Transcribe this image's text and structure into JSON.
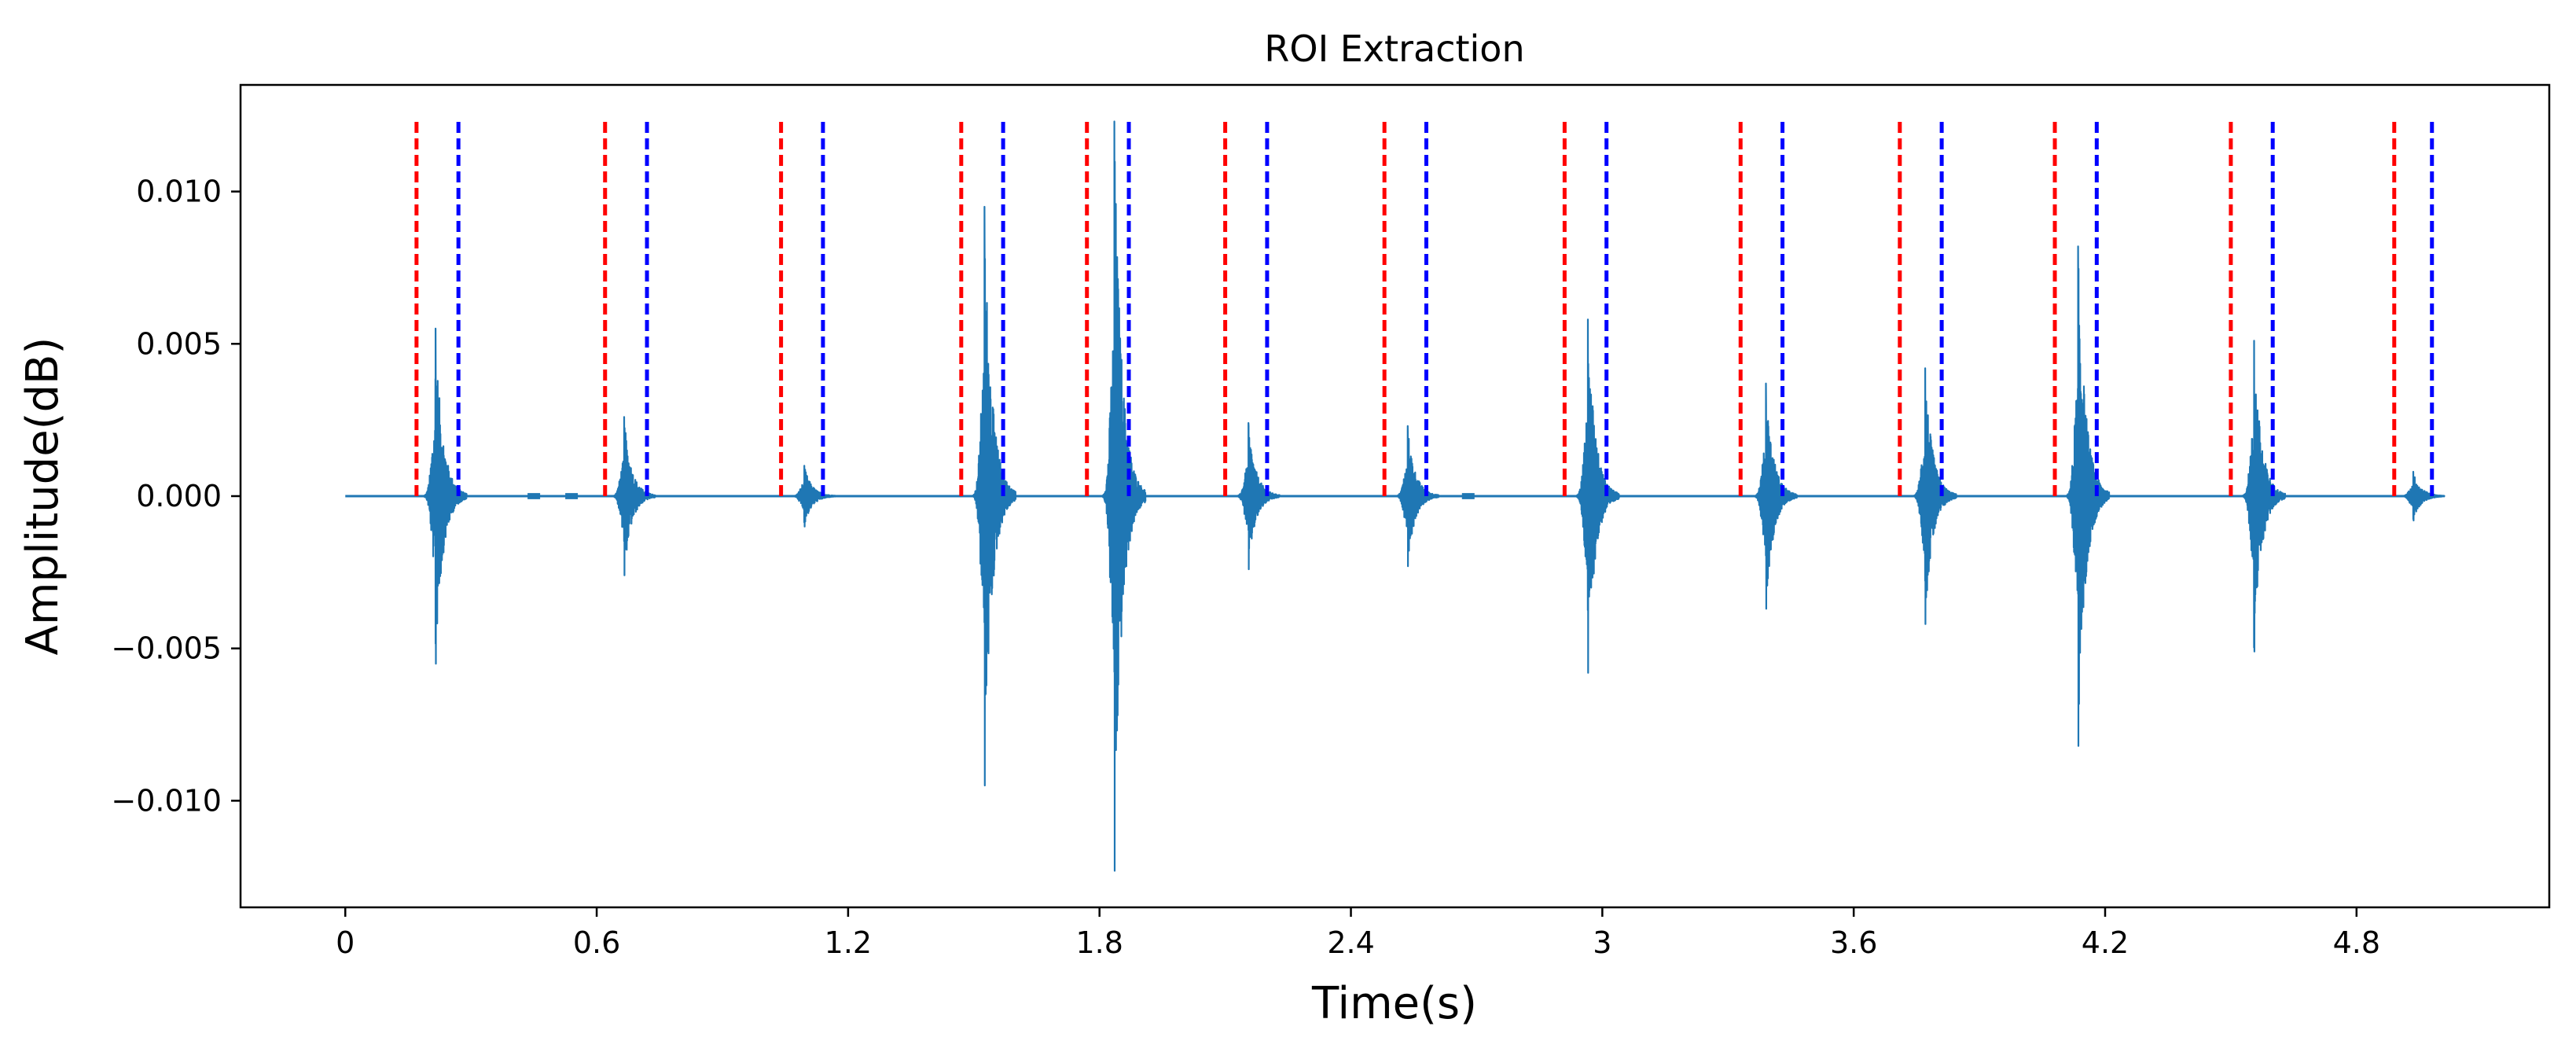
{
  "chart_data": {
    "type": "line",
    "title": "ROI Extraction",
    "xlabel": "Time(s)",
    "ylabel": "Amplitude(dB)",
    "xlim": [
      -0.25,
      5.26
    ],
    "ylim": [
      -0.0135,
      0.0135
    ],
    "x_ticks": [
      {
        "value": 0,
        "label": "0"
      },
      {
        "value": 0.6,
        "label": "0.6"
      },
      {
        "value": 1.2,
        "label": "1.2"
      },
      {
        "value": 1.8,
        "label": "1.8"
      },
      {
        "value": 2.4,
        "label": "2.4"
      },
      {
        "value": 3.0,
        "label": "3"
      },
      {
        "value": 3.6,
        "label": "3.6"
      },
      {
        "value": 4.2,
        "label": "4.2"
      },
      {
        "value": 4.8,
        "label": "4.8"
      }
    ],
    "y_ticks": [
      {
        "value": 0.01,
        "label": "0.010"
      },
      {
        "value": 0.005,
        "label": "0.005"
      },
      {
        "value": 0.0,
        "label": "0.000"
      },
      {
        "value": -0.005,
        "label": "−0.005"
      },
      {
        "value": -0.01,
        "label": "−0.010"
      }
    ],
    "signal": {
      "name": "waveform",
      "color": "#1f77b4",
      "x_range": [
        0,
        5.0
      ],
      "bursts": [
        {
          "t": 0.215,
          "pos": 0.0055,
          "neg": -0.0055
        },
        {
          "t": 0.665,
          "pos": 0.0026,
          "neg": -0.0026
        },
        {
          "t": 1.095,
          "pos": 0.001,
          "neg": -0.001
        },
        {
          "t": 1.525,
          "pos": 0.0095,
          "neg": -0.0095
        },
        {
          "t": 1.835,
          "pos": 0.0123,
          "neg": -0.0123
        },
        {
          "t": 2.155,
          "pos": 0.0024,
          "neg": -0.0024
        },
        {
          "t": 2.535,
          "pos": 0.0023,
          "neg": -0.0023
        },
        {
          "t": 2.965,
          "pos": 0.0058,
          "neg": -0.0058
        },
        {
          "t": 3.39,
          "pos": 0.0037,
          "neg": -0.0037
        },
        {
          "t": 3.77,
          "pos": 0.0042,
          "neg": -0.0042
        },
        {
          "t": 4.135,
          "pos": 0.0082,
          "neg": -0.0082
        },
        {
          "t": 4.555,
          "pos": 0.0051,
          "neg": -0.0051
        },
        {
          "t": 4.935,
          "pos": 0.0008,
          "neg": -0.0008
        }
      ],
      "minor_blips": [
        {
          "t": 0.45,
          "amp": 0.0001
        },
        {
          "t": 0.54,
          "amp": 0.0001
        },
        {
          "t": 2.68,
          "amp": 0.0001
        }
      ]
    },
    "roi_markers": {
      "y_range": [
        0,
        0.0123
      ],
      "start_color": "#ff0000",
      "end_color": "#0000ff",
      "style": "dashed",
      "starts": [
        0.17,
        0.62,
        1.04,
        1.47,
        1.77,
        2.1,
        2.48,
        2.91,
        3.33,
        3.71,
        4.08,
        4.5,
        4.89
      ],
      "ends": [
        0.27,
        0.72,
        1.14,
        1.57,
        1.87,
        2.2,
        2.58,
        3.01,
        3.43,
        3.81,
        4.18,
        4.6,
        4.98
      ]
    }
  }
}
